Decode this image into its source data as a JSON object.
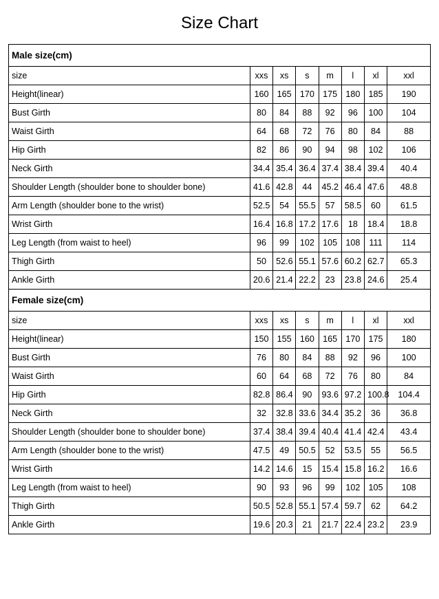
{
  "title": "Size Chart",
  "columns": [
    "xxs",
    "xs",
    "s",
    "m",
    "l",
    "xl",
    "xxl"
  ],
  "sections": [
    {
      "header": "Male size(cm)",
      "sizeRowLabel": "size",
      "rows": [
        {
          "label": "Height(linear)",
          "values": [
            "160",
            "165",
            "170",
            "175",
            "180",
            "185",
            "190"
          ]
        },
        {
          "label": "Bust Girth",
          "values": [
            "80",
            "84",
            "88",
            "92",
            "96",
            "100",
            "104"
          ]
        },
        {
          "label": "Waist Girth",
          "values": [
            "64",
            "68",
            "72",
            "76",
            "80",
            "84",
            "88"
          ]
        },
        {
          "label": "Hip Girth",
          "values": [
            "82",
            "86",
            "90",
            "94",
            "98",
            "102",
            "106"
          ]
        },
        {
          "label": "Neck Girth",
          "values": [
            "34.4",
            "35.4",
            "36.4",
            "37.4",
            "38.4",
            "39.4",
            "40.4"
          ]
        },
        {
          "label": "Shoulder Length (shoulder bone to shoulder bone)",
          "values": [
            "41.6",
            "42.8",
            "44",
            "45.2",
            "46.4",
            "47.6",
            "48.8"
          ]
        },
        {
          "label": "Arm Length (shoulder bone to the wrist)",
          "values": [
            "52.5",
            "54",
            "55.5",
            "57",
            "58.5",
            "60",
            "61.5"
          ]
        },
        {
          "label": "Wrist Girth",
          "values": [
            "16.4",
            "16.8",
            "17.2",
            "17.6",
            "18",
            "18.4",
            "18.8"
          ]
        },
        {
          "label": "Leg Length (from waist to heel)",
          "values": [
            "96",
            "99",
            "102",
            "105",
            "108",
            "111",
            "114"
          ]
        },
        {
          "label": "Thigh Girth",
          "values": [
            "50",
            "52.6",
            "55.1",
            "57.6",
            "60.2",
            "62.7",
            "65.3"
          ]
        },
        {
          "label": "Ankle Girth",
          "values": [
            "20.6",
            "21.4",
            "22.2",
            "23",
            "23.8",
            "24.6",
            "25.4"
          ]
        }
      ]
    },
    {
      "header": "Female size(cm)",
      "sizeRowLabel": "size",
      "rows": [
        {
          "label": "Height(linear)",
          "values": [
            "150",
            "155",
            "160",
            "165",
            "170",
            "175",
            "180"
          ]
        },
        {
          "label": "Bust Girth",
          "values": [
            "76",
            "80",
            "84",
            "88",
            "92",
            "96",
            "100"
          ]
        },
        {
          "label": "Waist Girth",
          "values": [
            "60",
            "64",
            "68",
            "72",
            "76",
            "80",
            "84"
          ]
        },
        {
          "label": "Hip Girth",
          "values": [
            "82.8",
            "86.4",
            "90",
            "93.6",
            "97.2",
            "100.8",
            "104.4"
          ]
        },
        {
          "label": "Neck Girth",
          "values": [
            "32",
            "32.8",
            "33.6",
            "34.4",
            "35.2",
            "36",
            "36.8"
          ]
        },
        {
          "label": "Shoulder Length (shoulder bone to shoulder bone)",
          "values": [
            "37.4",
            "38.4",
            "39.4",
            "40.4",
            "41.4",
            "42.4",
            "43.4"
          ]
        },
        {
          "label": "Arm Length (shoulder bone to the wrist)",
          "values": [
            "47.5",
            "49",
            "50.5",
            "52",
            "53.5",
            "55",
            "56.5"
          ]
        },
        {
          "label": "Wrist Girth",
          "values": [
            "14.2",
            "14.6",
            "15",
            "15.4",
            "15.8",
            "16.2",
            "16.6"
          ]
        },
        {
          "label": "Leg Length (from waist to heel)",
          "values": [
            "90",
            "93",
            "96",
            "99",
            "102",
            "105",
            "108"
          ]
        },
        {
          "label": "Thigh Girth",
          "values": [
            "50.5",
            "52.8",
            "55.1",
            "57.4",
            "59.7",
            "62",
            "64.2"
          ]
        },
        {
          "label": "Ankle Girth",
          "values": [
            "19.6",
            "20.3",
            "21",
            "21.7",
            "22.4",
            "23.2",
            "23.9"
          ]
        }
      ]
    }
  ]
}
